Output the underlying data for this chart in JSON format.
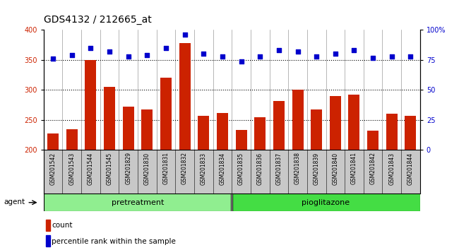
{
  "title": "GDS4132 / 212665_at",
  "categories": [
    "GSM201542",
    "GSM201543",
    "GSM201544",
    "GSM201545",
    "GSM201829",
    "GSM201830",
    "GSM201831",
    "GSM201832",
    "GSM201833",
    "GSM201834",
    "GSM201835",
    "GSM201836",
    "GSM201837",
    "GSM201838",
    "GSM201839",
    "GSM201840",
    "GSM201841",
    "GSM201842",
    "GSM201843",
    "GSM201844"
  ],
  "bar_values": [
    228,
    235,
    350,
    305,
    272,
    268,
    320,
    378,
    257,
    262,
    233,
    255,
    282,
    300,
    268,
    290,
    292,
    232,
    260,
    257
  ],
  "dot_values": [
    76,
    79,
    85,
    82,
    78,
    79,
    85,
    96,
    80,
    78,
    74,
    78,
    83,
    82,
    78,
    80,
    83,
    77,
    78,
    78
  ],
  "bar_color": "#CC2200",
  "dot_color": "#0000CC",
  "ylim_left": [
    200,
    400
  ],
  "ylim_right": [
    0,
    100
  ],
  "yticks_left": [
    200,
    250,
    300,
    350,
    400
  ],
  "yticks_right": [
    0,
    25,
    50,
    75,
    100
  ],
  "ytick_right_labels": [
    "0",
    "25",
    "50",
    "75",
    "100%"
  ],
  "grid_values": [
    250,
    300,
    350
  ],
  "pretreatment_label": "pretreatment",
  "pioglitazone_label": "pioglitazone",
  "agent_label": "agent",
  "legend_count": "count",
  "legend_percentile": "percentile rank within the sample",
  "bg_color_pretreatment": "#90EE90",
  "bg_color_pioglitazone": "#44DD44",
  "plot_bg_color": "#FFFFFF",
  "xtick_bg_color": "#C8C8C8",
  "title_fontsize": 10,
  "tick_fontsize": 7,
  "bar_width": 0.6
}
